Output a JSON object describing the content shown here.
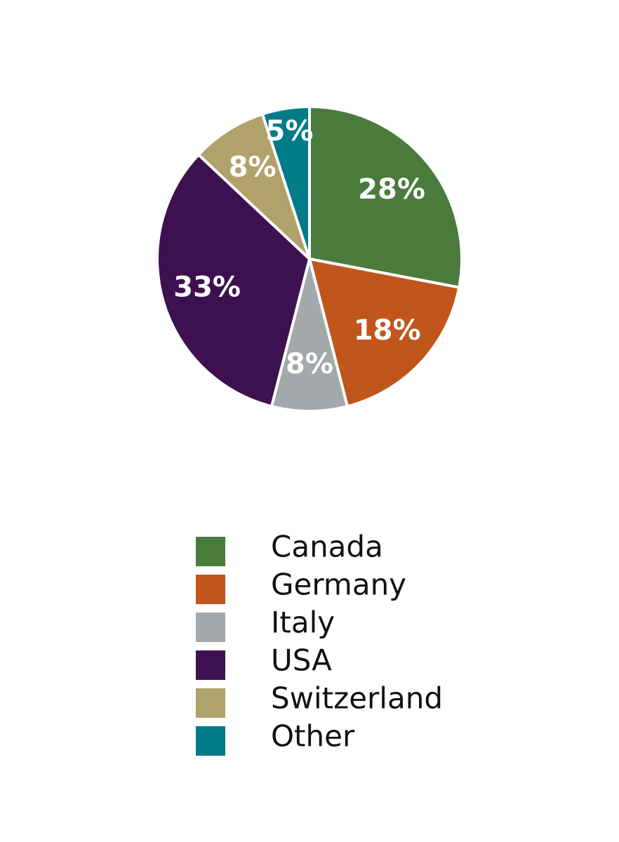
{
  "chart_data": {
    "type": "pie",
    "categories": [
      "Canada",
      "Germany",
      "Italy",
      "USA",
      "Switzerland",
      "Other"
    ],
    "values": [
      28,
      18,
      8,
      33,
      8,
      5
    ],
    "value_labels": [
      "28%",
      "18%",
      "8%",
      "33%",
      "8%",
      "5%"
    ],
    "colors": [
      "#4a7a3c",
      "#c0561c",
      "#a3a8aa",
      "#3d1150",
      "#b1a16a",
      "#007b88"
    ]
  }
}
